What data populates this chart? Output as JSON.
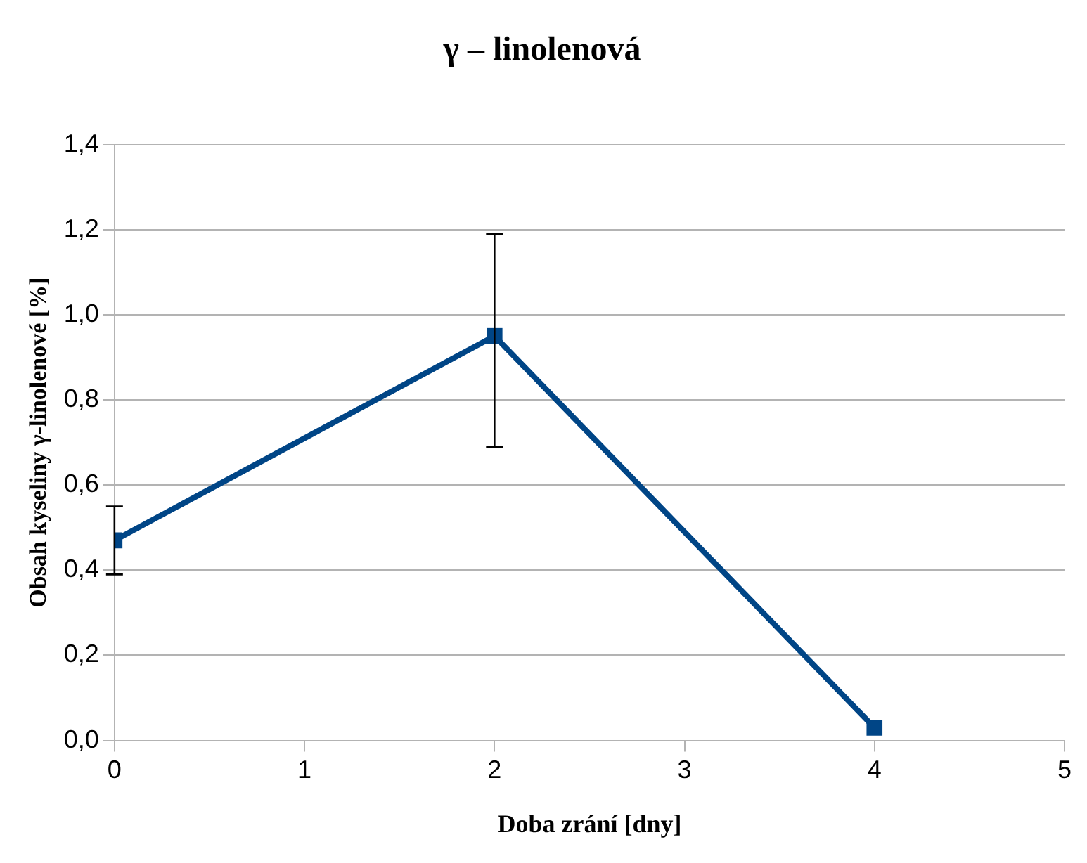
{
  "chart_data": {
    "type": "line",
    "title": "γ – linolenová",
    "xlabel": "Doba zrání [dny]",
    "ylabel": "Obsah kyseliny γ-linolenové [%]",
    "x": [
      0,
      2,
      4
    ],
    "series": [
      {
        "color": "#004586",
        "values": [
          0.47,
          0.95,
          0.03
        ],
        "errors": [
          [
            0.39,
            0.55
          ],
          [
            0.69,
            1.19
          ],
          null
        ]
      }
    ],
    "xlim": [
      0,
      5
    ],
    "xticks": [
      0,
      1,
      2,
      3,
      4,
      5
    ],
    "ylim": [
      0,
      1.4
    ],
    "yticks": [
      {
        "value": 0,
        "label": "0,0"
      },
      {
        "value": 0.2,
        "label": "0,2"
      },
      {
        "value": 0.4,
        "label": "0,4"
      },
      {
        "value": 0.6,
        "label": "0,6"
      },
      {
        "value": 0.8,
        "label": "0,8"
      },
      {
        "value": 1,
        "label": "1,0"
      },
      {
        "value": 1.2,
        "label": "1,2"
      },
      {
        "value": 1.4,
        "label": "1,4"
      }
    ],
    "grid": "y",
    "legend": false,
    "marker": "square",
    "line_style": "solid"
  }
}
